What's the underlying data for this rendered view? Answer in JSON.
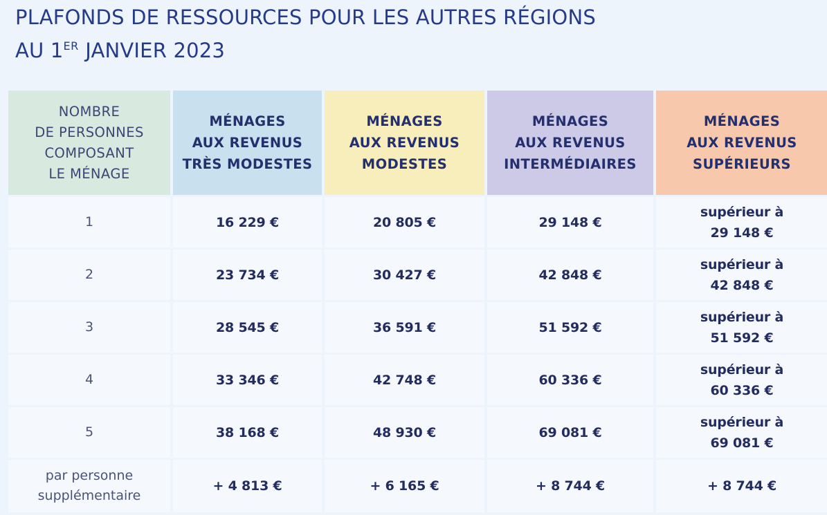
{
  "title": {
    "line1": "PLAFONDS DE RESSOURCES POUR LES AUTRES RÉGIONS",
    "line2_prefix": "AU 1",
    "line2_sup": "ER",
    "line2_suffix": " JANVIER 2023"
  },
  "table": {
    "headers": [
      {
        "lines": [
          "NOMBRE",
          "DE PERSONNES",
          "COMPOSANT",
          "LE MÉNAGE"
        ],
        "color": "#d8eadf"
      },
      {
        "lines": [
          "MÉNAGES",
          "AUX REVENUS",
          "TRÈS MODESTES"
        ],
        "color": "#c9e0ef"
      },
      {
        "lines": [
          "MÉNAGES",
          "AUX REVENUS",
          "MODESTES"
        ],
        "color": "#f8eebc"
      },
      {
        "lines": [
          "MÉNAGES",
          "AUX REVENUS",
          "INTERMÉDIAIRES"
        ],
        "color": "#cdcae8"
      },
      {
        "lines": [
          "MÉNAGES",
          "AUX REVENUS",
          "SUPÉRIEURS"
        ],
        "color": "#f8c8ad"
      }
    ],
    "rows": [
      {
        "label": [
          "1"
        ],
        "tres_modestes": "16 229 €",
        "modestes": "20 805 €",
        "intermediaires": "29 148 €",
        "superieurs": [
          "supérieur à",
          "29 148 €"
        ]
      },
      {
        "label": [
          "2"
        ],
        "tres_modestes": "23 734 €",
        "modestes": "30 427 €",
        "intermediaires": "42 848 €",
        "superieurs": [
          "supérieur à",
          "42 848 €"
        ]
      },
      {
        "label": [
          "3"
        ],
        "tres_modestes": "28 545 €",
        "modestes": "36 591 €",
        "intermediaires": "51 592 €",
        "superieurs": [
          "supérieur à",
          "51 592 €"
        ]
      },
      {
        "label": [
          "4"
        ],
        "tres_modestes": "33 346 €",
        "modestes": "42 748 €",
        "intermediaires": "60 336 €",
        "superieurs": [
          "supérieur à",
          "60 336 €"
        ]
      },
      {
        "label": [
          "5"
        ],
        "tres_modestes": "38 168 €",
        "modestes": "48 930 €",
        "intermediaires": "69 081 €",
        "superieurs": [
          "supérieur à",
          "69 081 €"
        ]
      },
      {
        "label": [
          "par personne",
          "supplémentaire"
        ],
        "tres_modestes": "+ 4 813 €",
        "modestes": "+ 6 165 €",
        "intermediaires": "+ 8 744 €",
        "superieurs": [
          "+ 8 744 €"
        ]
      }
    ]
  }
}
